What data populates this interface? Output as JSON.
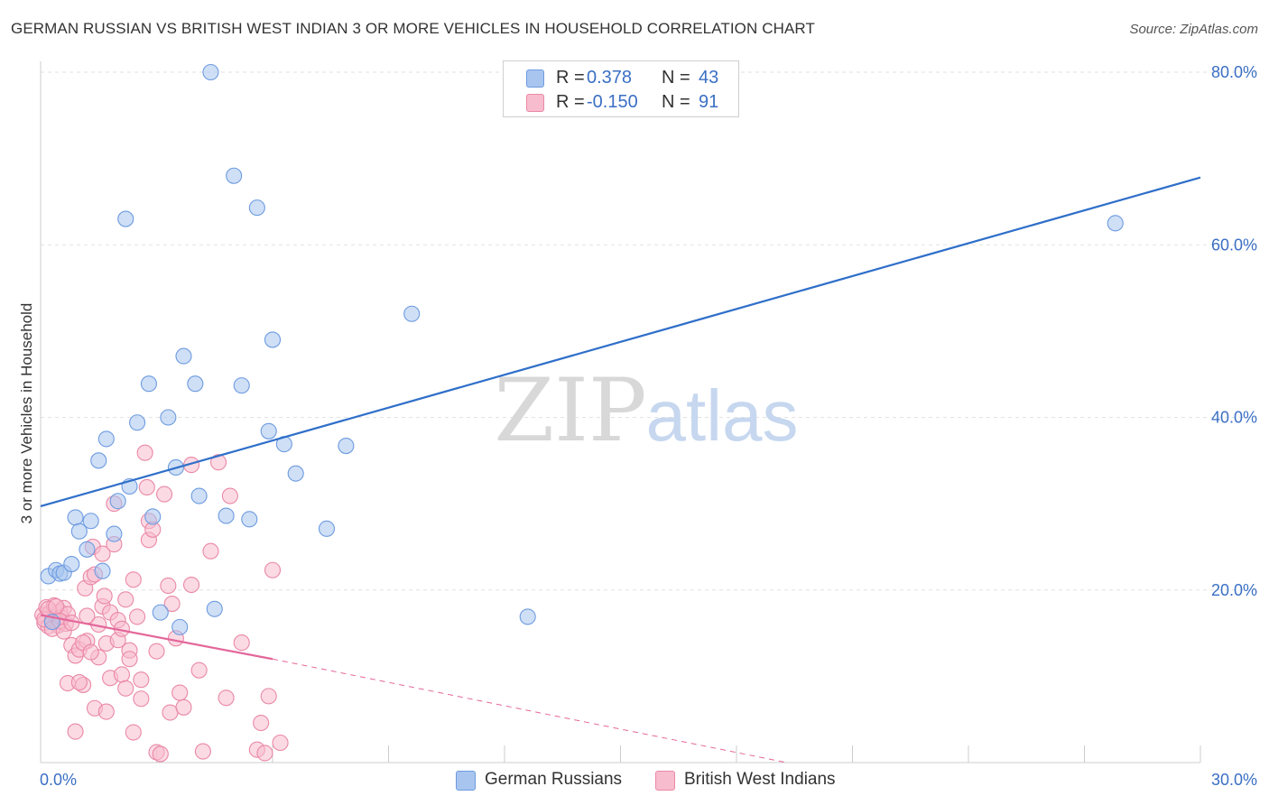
{
  "title": "GERMAN RUSSIAN VS BRITISH WEST INDIAN 3 OR MORE VEHICLES IN HOUSEHOLD CORRELATION CHART",
  "source": "Source: ZipAtlas.com",
  "watermark": {
    "zip": "ZIP",
    "atlas": "atlas"
  },
  "legend_top": [
    {
      "r_label": "R =",
      "r_value": "0.378",
      "n_label": "N =",
      "n_value": "43",
      "color": "#a8c5ef",
      "border": "#6d9be0"
    },
    {
      "r_label": "R =",
      "r_value": "-0.150",
      "n_label": "N =",
      "n_value": "91",
      "color": "#f7bccd",
      "border": "#ea88a6"
    }
  ],
  "legend_bottom": [
    {
      "label": "German Russians",
      "color": "#a8c5ef",
      "border": "#6d9be0"
    },
    {
      "label": "British West Indians",
      "color": "#f7bccd",
      "border": "#ea88a6"
    }
  ],
  "chart_data": {
    "type": "scatter",
    "ylabel": "3 or more Vehicles in Household",
    "xlim": [
      0,
      30
    ],
    "ylim": [
      0,
      80
    ],
    "x_tick_labels": [
      {
        "value": 0,
        "label": "0.0%"
      },
      {
        "value": 30,
        "label": "30.0%"
      }
    ],
    "y_tick_labels": [
      {
        "value": 20,
        "label": "20.0%"
      },
      {
        "value": 40,
        "label": "40.0%"
      },
      {
        "value": 60,
        "label": "60.0%"
      },
      {
        "value": 80,
        "label": "80.0%"
      }
    ],
    "grid": true,
    "legend_position": "top-center",
    "series": [
      {
        "name": "German Russians",
        "color": "#6d9be0",
        "fill": "#a8c5ef",
        "points": [
          [
            0.2,
            21.6
          ],
          [
            0.4,
            22.3
          ],
          [
            0.5,
            21.9
          ],
          [
            0.6,
            22.0
          ],
          [
            0.8,
            23.0
          ],
          [
            0.9,
            28.4
          ],
          [
            1.0,
            26.8
          ],
          [
            1.3,
            28.0
          ],
          [
            1.2,
            24.7
          ],
          [
            1.5,
            35.0
          ],
          [
            1.7,
            37.5
          ],
          [
            1.6,
            22.2
          ],
          [
            1.9,
            26.5
          ],
          [
            2.0,
            30.3
          ],
          [
            2.2,
            63.0
          ],
          [
            2.3,
            32.0
          ],
          [
            2.5,
            39.4
          ],
          [
            2.8,
            43.9
          ],
          [
            2.9,
            28.5
          ],
          [
            3.1,
            17.4
          ],
          [
            3.3,
            40.0
          ],
          [
            3.5,
            34.2
          ],
          [
            3.6,
            15.7
          ],
          [
            3.7,
            47.1
          ],
          [
            4.0,
            43.9
          ],
          [
            4.1,
            30.9
          ],
          [
            4.4,
            80.0
          ],
          [
            4.5,
            17.8
          ],
          [
            4.8,
            28.6
          ],
          [
            5.0,
            68.0
          ],
          [
            5.2,
            43.7
          ],
          [
            5.4,
            28.2
          ],
          [
            5.6,
            64.3
          ],
          [
            5.9,
            38.4
          ],
          [
            6.0,
            49.0
          ],
          [
            6.3,
            36.9
          ],
          [
            6.6,
            33.5
          ],
          [
            7.4,
            27.1
          ],
          [
            7.9,
            36.7
          ],
          [
            9.6,
            52.0
          ],
          [
            12.6,
            16.9
          ],
          [
            27.8,
            62.5
          ],
          [
            0.3,
            16.3
          ]
        ]
      },
      {
        "name": "British West Indians",
        "color": "#ea88a6",
        "fill": "#f7bccd",
        "points": [
          [
            0.05,
            17.1
          ],
          [
            0.1,
            16.2
          ],
          [
            0.15,
            18.0
          ],
          [
            0.2,
            15.8
          ],
          [
            0.25,
            17.4
          ],
          [
            0.3,
            16.5
          ],
          [
            0.35,
            18.2
          ],
          [
            0.4,
            16.9
          ],
          [
            0.45,
            15.9
          ],
          [
            0.5,
            17.5
          ],
          [
            0.55,
            16.8
          ],
          [
            0.6,
            17.9
          ],
          [
            0.65,
            16.1
          ],
          [
            0.7,
            17.2
          ],
          [
            0.1,
            16.6
          ],
          [
            0.2,
            17.8
          ],
          [
            0.3,
            15.5
          ],
          [
            0.4,
            18.1
          ],
          [
            0.5,
            16.4
          ],
          [
            0.6,
            15.2
          ],
          [
            0.7,
            9.2
          ],
          [
            0.8,
            13.6
          ],
          [
            0.9,
            3.6
          ],
          [
            0.9,
            12.4
          ],
          [
            1.0,
            13.1
          ],
          [
            1.1,
            9.0
          ],
          [
            1.15,
            20.2
          ],
          [
            1.2,
            14.1
          ],
          [
            1.3,
            21.5
          ],
          [
            1.35,
            25.0
          ],
          [
            1.4,
            21.8
          ],
          [
            1.4,
            6.3
          ],
          [
            1.5,
            12.2
          ],
          [
            1.5,
            16.0
          ],
          [
            1.6,
            24.2
          ],
          [
            1.6,
            18.1
          ],
          [
            1.65,
            19.3
          ],
          [
            1.7,
            13.8
          ],
          [
            1.7,
            5.9
          ],
          [
            1.8,
            17.4
          ],
          [
            1.8,
            9.8
          ],
          [
            1.9,
            25.3
          ],
          [
            1.9,
            30.0
          ],
          [
            2.0,
            16.5
          ],
          [
            2.0,
            14.2
          ],
          [
            2.1,
            10.2
          ],
          [
            2.1,
            15.5
          ],
          [
            2.2,
            18.9
          ],
          [
            2.2,
            8.6
          ],
          [
            2.3,
            13.0
          ],
          [
            2.4,
            21.2
          ],
          [
            2.4,
            3.5
          ],
          [
            2.5,
            16.9
          ],
          [
            2.6,
            7.4
          ],
          [
            2.6,
            9.6
          ],
          [
            2.7,
            35.9
          ],
          [
            2.75,
            31.9
          ],
          [
            2.8,
            25.8
          ],
          [
            2.8,
            28.0
          ],
          [
            2.9,
            27.0
          ],
          [
            3.0,
            1.2
          ],
          [
            3.0,
            12.9
          ],
          [
            3.1,
            1.0
          ],
          [
            3.2,
            31.1
          ],
          [
            3.3,
            20.5
          ],
          [
            3.35,
            5.8
          ],
          [
            3.4,
            18.4
          ],
          [
            3.5,
            14.4
          ],
          [
            3.6,
            8.1
          ],
          [
            3.7,
            6.4
          ],
          [
            3.9,
            34.5
          ],
          [
            3.9,
            20.6
          ],
          [
            4.1,
            10.7
          ],
          [
            4.2,
            1.3
          ],
          [
            4.4,
            24.5
          ],
          [
            4.6,
            34.8
          ],
          [
            4.8,
            7.5
          ],
          [
            4.9,
            30.9
          ],
          [
            5.2,
            13.9
          ],
          [
            5.6,
            1.5
          ],
          [
            5.7,
            4.6
          ],
          [
            5.8,
            1.1
          ],
          [
            5.9,
            7.7
          ],
          [
            6.0,
            22.3
          ],
          [
            6.2,
            2.3
          ],
          [
            1.0,
            9.3
          ],
          [
            1.1,
            13.9
          ],
          [
            1.2,
            17.0
          ],
          [
            1.3,
            12.8
          ],
          [
            0.8,
            16.2
          ],
          [
            2.3,
            12.0
          ]
        ]
      }
    ],
    "trendlines": [
      {
        "series": "German Russians",
        "x": [
          0,
          30
        ],
        "y": [
          29.7,
          67.8
        ],
        "style": "solid"
      },
      {
        "series": "British West Indians",
        "x": [
          0,
          6.0
        ],
        "y": [
          17.1,
          12.0
        ],
        "style": "solid"
      },
      {
        "series": "British West Indians",
        "x": [
          6.0,
          19.3
        ],
        "y": [
          12.0,
          0
        ],
        "style": "dashed"
      }
    ]
  }
}
